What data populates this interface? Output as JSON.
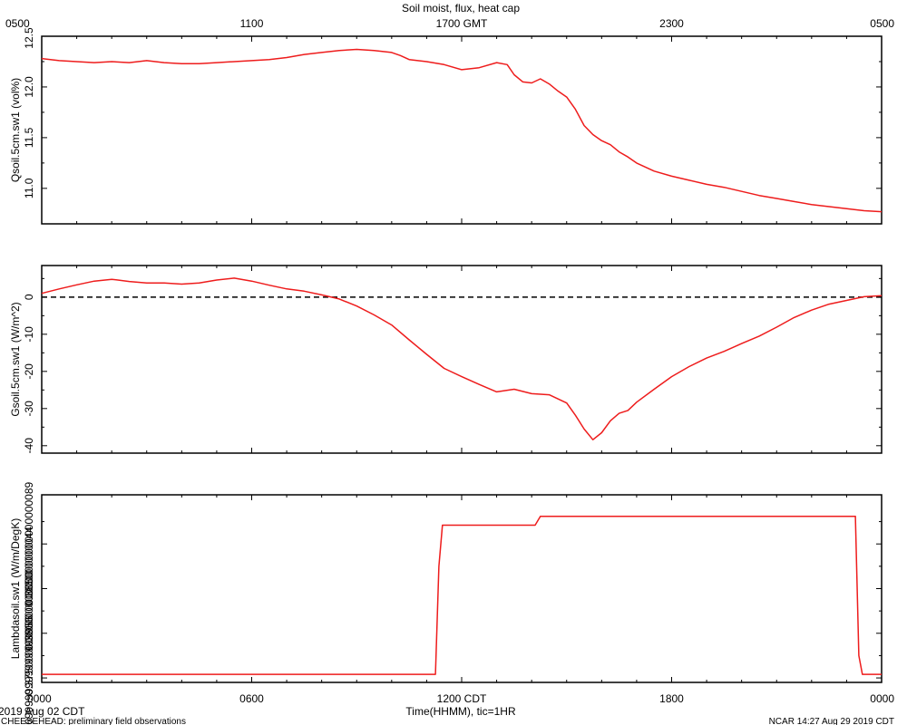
{
  "title": "Soil moist, flux, heat cap",
  "top_axis": {
    "ticks": [
      "0500",
      "1100",
      "1700 GMT",
      "2300",
      "0500"
    ]
  },
  "bottom_axis": {
    "ticks": [
      "0000",
      "0600",
      "1200 CDT",
      "1800",
      "0000"
    ],
    "label": "Time(HHMM), tic=1HR"
  },
  "footer": {
    "left_date": "2019 Aug 02 CDT",
    "left_note": "CHEESEHEAD: preliminary field observations",
    "right_note": "NCAR 14:27 Aug 29 2019 CDT"
  },
  "colors": {
    "series": "#ee1c1c",
    "axis": "#000000",
    "zero_line": "#000000"
  },
  "chart_data": [
    {
      "type": "line",
      "ylabel": "Qsoil.5cm.sw1 (vol%)",
      "xlim": [
        0,
        24
      ],
      "ylim": [
        10.65,
        12.5
      ],
      "yticks": [
        11.0,
        11.5,
        12.0,
        12.5
      ],
      "series": [
        {
          "x": [
            0,
            0.5,
            1,
            1.5,
            2,
            2.5,
            3,
            3.5,
            4,
            4.5,
            5,
            5.5,
            6,
            6.5,
            7,
            7.5,
            8,
            8.5,
            9,
            9.5,
            10,
            10.25,
            10.5,
            11,
            11.5,
            12,
            12.5,
            13,
            13.3,
            13.5,
            13.75,
            14,
            14.25,
            14.5,
            14.75,
            15,
            15.25,
            15.5,
            15.75,
            16,
            16.25,
            16.5,
            16.75,
            17,
            17.5,
            18,
            18.5,
            19,
            19.5,
            20,
            20.5,
            21,
            21.5,
            22,
            22.5,
            23,
            23.5,
            24
          ],
          "y": [
            12.28,
            12.26,
            12.25,
            12.24,
            12.25,
            12.24,
            12.26,
            12.24,
            12.23,
            12.23,
            12.24,
            12.25,
            12.26,
            12.27,
            12.29,
            12.32,
            12.34,
            12.36,
            12.37,
            12.36,
            12.34,
            12.31,
            12.27,
            12.25,
            12.22,
            12.17,
            12.19,
            12.24,
            12.22,
            12.12,
            12.05,
            12.04,
            12.08,
            12.03,
            11.96,
            11.9,
            11.78,
            11.62,
            11.53,
            11.47,
            11.43,
            11.36,
            11.31,
            11.25,
            11.17,
            11.12,
            11.08,
            11.04,
            11.01,
            10.97,
            10.93,
            10.9,
            10.87,
            10.84,
            10.82,
            10.8,
            10.78,
            10.77
          ]
        }
      ]
    },
    {
      "type": "line",
      "ylabel": "Gsoil.5cm.sw1 (W/m^2)",
      "xlim": [
        0,
        24
      ],
      "ylim": [
        -42,
        8.5
      ],
      "yticks": [
        -40,
        -30,
        -20,
        -10,
        0
      ],
      "zero_line": true,
      "series": [
        {
          "x": [
            0,
            0.5,
            1,
            1.5,
            2,
            2.5,
            3,
            3.5,
            4,
            4.5,
            5,
            5.5,
            6,
            6.5,
            7,
            7.5,
            8,
            8.5,
            9,
            9.5,
            10,
            10.5,
            11,
            11.5,
            12,
            12.5,
            13,
            13.5,
            14,
            14.5,
            15,
            15.25,
            15.5,
            15.75,
            16,
            16.25,
            16.5,
            16.75,
            17,
            17.5,
            18,
            18.5,
            19,
            19.5,
            20,
            20.5,
            21,
            21.5,
            22,
            22.5,
            23,
            23.5,
            24
          ],
          "y": [
            1,
            2.2,
            3.3,
            4.3,
            4.8,
            4.2,
            3.8,
            3.8,
            3.5,
            3.8,
            4.6,
            5.1,
            4.3,
            3.2,
            2.2,
            1.6,
            0.6,
            -0.5,
            -2.4,
            -4.8,
            -7.5,
            -11.5,
            -15.4,
            -19.2,
            -21.4,
            -23.5,
            -25.5,
            -24.8,
            -26.0,
            -26.3,
            -28.5,
            -31.8,
            -35.5,
            -38.4,
            -36.5,
            -33.3,
            -31.3,
            -30.5,
            -28.3,
            -24.8,
            -21.4,
            -18.7,
            -16.4,
            -14.6,
            -12.5,
            -10.5,
            -8.1,
            -5.5,
            -3.5,
            -1.9,
            -0.9,
            0.1,
            0.4
          ]
        }
      ]
    },
    {
      "type": "line",
      "ylabel": "Lambdasoil.sw1 (W/m/DegK)",
      "xlim": [
        0,
        24
      ],
      "ylim": [
        0.3695,
        0.3905
      ],
      "yticks": [
        0.37,
        0.375,
        0.38,
        0.385
      ],
      "series": [
        {
          "x": [
            0,
            11.25,
            11.35,
            11.45,
            14.1,
            14.25,
            23.25,
            23.35,
            23.45,
            24
          ],
          "y": [
            0.3704,
            0.3704,
            0.3825,
            0.3871,
            0.3871,
            0.3881,
            0.3881,
            0.3725,
            0.3704,
            0.3704
          ]
        }
      ]
    }
  ]
}
